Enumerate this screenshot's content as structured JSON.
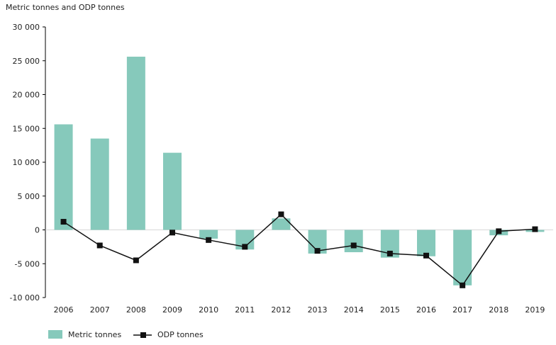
{
  "chart_data": {
    "type": "bar",
    "ylabel": "Metric tonnes and ODP tonnes",
    "categories": [
      "2006",
      "2007",
      "2008",
      "2009",
      "2010",
      "2011",
      "2012",
      "2013",
      "2014",
      "2015",
      "2016",
      "2017",
      "2018",
      "2019"
    ],
    "y_ticks": [
      "30 000",
      "25 000",
      "20 000",
      "15 000",
      "10 000",
      "5 000",
      "0",
      "-5 000",
      "-10 000"
    ],
    "ylim": [
      -10000,
      30000
    ],
    "grid": false,
    "legend_position": "bottom-left",
    "series": [
      {
        "name": "Metric tonnes",
        "type": "bar",
        "color": "#86c9bb",
        "values": [
          15600,
          13500,
          25600,
          11400,
          -1300,
          -2900,
          1700,
          -3500,
          -3300,
          -4100,
          -3900,
          -8200,
          -800,
          -300
        ]
      },
      {
        "name": "ODP tonnes",
        "type": "line",
        "color": "#111111",
        "marker": "square",
        "values": [
          1200,
          -2300,
          -4500,
          -400,
          -1500,
          -2500,
          2300,
          -3100,
          -2300,
          -3500,
          -3800,
          -8200,
          -200,
          100
        ]
      }
    ]
  }
}
